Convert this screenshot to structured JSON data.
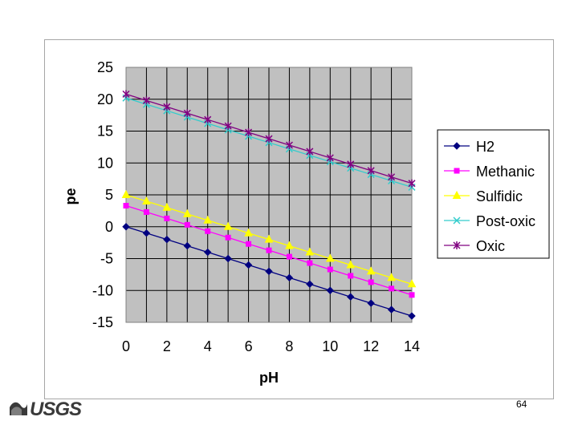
{
  "slide": {
    "page_number": "64",
    "logo_text": "USGS"
  },
  "colors": {
    "plot_background": "#c0c0c0",
    "grid": "#000000"
  },
  "chart_data": {
    "type": "line",
    "title": "",
    "xlabel": "pH",
    "ylabel": "pe",
    "xlim": [
      0,
      14
    ],
    "ylim": [
      -15,
      25
    ],
    "x_ticks": [
      "0",
      "2",
      "4",
      "6",
      "8",
      "10",
      "12",
      "14"
    ],
    "y_ticks": [
      "25",
      "20",
      "15",
      "10",
      "5",
      "0",
      "-5",
      "-10",
      "-15"
    ],
    "grid": true,
    "legend_position": "right",
    "x": [
      0,
      1,
      2,
      3,
      4,
      5,
      6,
      7,
      8,
      9,
      10,
      11,
      12,
      13,
      14
    ],
    "series": [
      {
        "name": "H2",
        "color": "#000080",
        "marker": "diamond",
        "values": [
          0,
          -1,
          -2,
          -3,
          -4,
          -5,
          -6,
          -7,
          -8,
          -9,
          -10,
          -11,
          -12,
          -13,
          -14
        ]
      },
      {
        "name": "Methanic",
        "color": "#ff00ff",
        "marker": "square",
        "values": [
          3.3,
          2.3,
          1.3,
          0.3,
          -0.7,
          -1.7,
          -2.7,
          -3.7,
          -4.7,
          -5.7,
          -6.7,
          -7.7,
          -8.7,
          -9.7,
          -10.7
        ]
      },
      {
        "name": "Sulfidic",
        "color": "#ffff00",
        "marker": "triangle",
        "values": [
          5,
          4,
          3,
          2,
          1,
          0,
          -1,
          -2,
          -3,
          -4,
          -5,
          -6,
          -7,
          -8,
          -9
        ]
      },
      {
        "name": "Post-oxic",
        "color": "#33cccc",
        "marker": "x",
        "values": [
          20.2,
          19.2,
          18.2,
          17.2,
          16.2,
          15.2,
          14.2,
          13.2,
          12.2,
          11.2,
          10.2,
          9.2,
          8.2,
          7.2,
          6.2
        ]
      },
      {
        "name": "Oxic",
        "color": "#800080",
        "marker": "star",
        "values": [
          20.8,
          19.8,
          18.8,
          17.8,
          16.8,
          15.8,
          14.8,
          13.8,
          12.8,
          11.8,
          10.8,
          9.8,
          8.8,
          7.8,
          6.8
        ]
      }
    ]
  }
}
